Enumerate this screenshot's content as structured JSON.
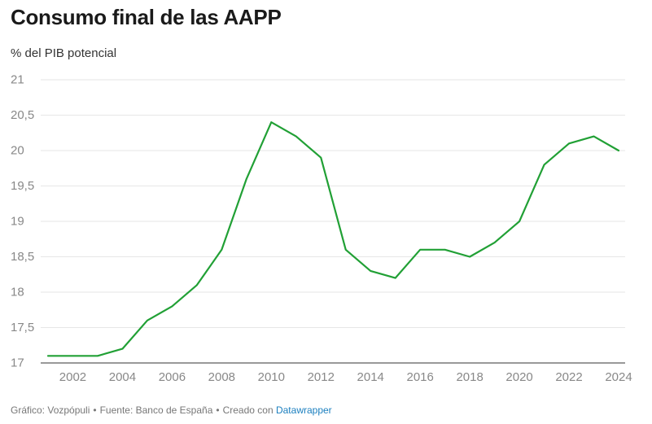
{
  "chart_data": {
    "type": "line",
    "title": "Consumo final de las AAPP",
    "subtitle": "% del PIB potencial",
    "xlabel": "",
    "ylabel": "",
    "x": [
      2001,
      2002,
      2003,
      2004,
      2005,
      2006,
      2007,
      2008,
      2009,
      2010,
      2011,
      2012,
      2013,
      2014,
      2015,
      2016,
      2017,
      2018,
      2019,
      2020,
      2021,
      2022,
      2023,
      2024
    ],
    "series": [
      {
        "name": "Consumo final de las AAPP",
        "color": "#21a035",
        "values": [
          17.1,
          17.1,
          17.1,
          17.2,
          17.6,
          17.8,
          18.1,
          18.6,
          19.6,
          20.4,
          20.2,
          19.9,
          18.6,
          18.3,
          18.2,
          18.6,
          18.6,
          18.5,
          18.7,
          19.0,
          19.8,
          20.1,
          20.2,
          20.0
        ]
      }
    ],
    "xlim": [
      2001,
      2024
    ],
    "ylim": [
      17,
      21
    ],
    "x_ticks": [
      2002,
      2004,
      2006,
      2008,
      2010,
      2012,
      2014,
      2016,
      2018,
      2020,
      2022,
      2024
    ],
    "x_tick_labels": [
      "2002",
      "2004",
      "2006",
      "2008",
      "2010",
      "2012",
      "2014",
      "2016",
      "2018",
      "2020",
      "2022",
      "2024"
    ],
    "y_ticks": [
      17,
      17.5,
      18,
      18.5,
      19,
      19.5,
      20,
      20.5,
      21
    ],
    "y_tick_labels": [
      "17",
      "17,5",
      "18",
      "18,5",
      "19",
      "19,5",
      "20",
      "20,5",
      "21"
    ],
    "grid": true
  },
  "footer": {
    "graphic": "Gráfico: Vozpópuli",
    "source": "Fuente: Banco de España",
    "created_with": "Creado con",
    "tool": "Datawrapper",
    "separator": "•"
  },
  "colors": {
    "line": "#21a035",
    "grid": "#e6e6e6",
    "axis": "#333333",
    "tick_text": "#888888",
    "link": "#1b7fbf"
  }
}
